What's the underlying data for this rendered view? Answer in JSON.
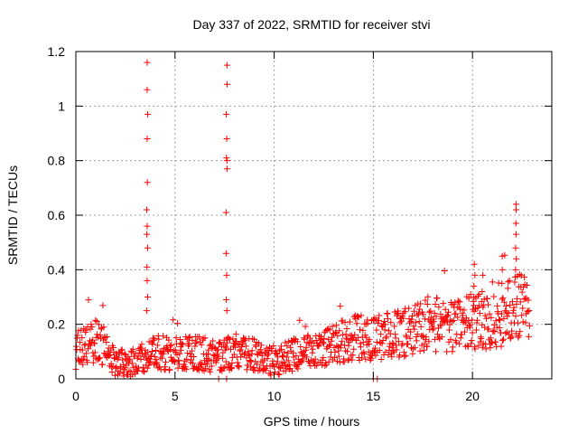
{
  "chart_data": {
    "type": "scatter",
    "title": "Day 337 of 2022, SRMTID for receiver stvi",
    "xlabel": "GPS time / hours",
    "ylabel": "SRMTID / TECUs",
    "xlim": [
      0,
      24
    ],
    "ylim": [
      0,
      1.2
    ],
    "xticks": [
      0,
      5,
      10,
      15,
      20
    ],
    "xtick_labels": [
      "0",
      "5",
      "10",
      "15",
      "20"
    ],
    "yticks": [
      0,
      0.2,
      0.4,
      0.6,
      0.8,
      1.0,
      1.2
    ],
    "ytick_labels": [
      "0",
      "0.2",
      "0.4",
      "0.6",
      "0.8",
      "1",
      "1.2"
    ],
    "grid": true,
    "marker": "+",
    "color": "#ff0000",
    "x_range_hours": [
      0,
      22.9
    ],
    "trend": {
      "description": "Baseline values vs GPS time (approximate envelope centre)",
      "x": [
        0,
        1,
        2,
        3,
        4,
        5,
        6,
        7,
        8,
        9,
        10,
        11,
        12,
        13,
        14,
        15,
        16,
        17,
        18,
        19,
        20,
        21,
        22,
        22.9
      ],
      "y": [
        0.1,
        0.14,
        0.06,
        0.06,
        0.1,
        0.09,
        0.1,
        0.08,
        0.1,
        0.09,
        0.06,
        0.09,
        0.1,
        0.13,
        0.15,
        0.15,
        0.16,
        0.18,
        0.2,
        0.19,
        0.21,
        0.21,
        0.25,
        0.28
      ]
    },
    "spikes": [
      {
        "x": 3.6,
        "y": [
          0.25,
          0.3,
          0.36,
          0.41,
          0.48,
          0.53,
          0.56,
          0.62,
          0.72,
          0.88,
          0.97,
          1.06,
          1.16
        ]
      },
      {
        "x": 7.6,
        "y": [
          0.25,
          0.29,
          0.38,
          0.46,
          0.61,
          0.77,
          0.8,
          0.81,
          0.88,
          0.97,
          1.08,
          1.15
        ]
      },
      {
        "x": 20.1,
        "y": [
          0.3,
          0.34,
          0.38,
          0.42
        ]
      },
      {
        "x": 20.5,
        "y": [
          0.32,
          0.38
        ]
      },
      {
        "x": 21.5,
        "y": [
          0.35,
          0.4,
          0.45
        ]
      },
      {
        "x": 22.2,
        "y": [
          0.4,
          0.44,
          0.48,
          0.53,
          0.57,
          0.62,
          0.64
        ]
      }
    ],
    "zero_points_x": [
      7.2,
      7.6,
      15.0,
      15.2
    ]
  }
}
